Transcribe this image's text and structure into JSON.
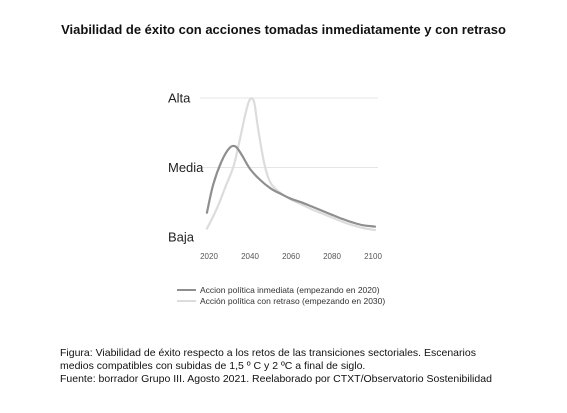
{
  "chart_data": {
    "type": "line",
    "title": "Viabilidad de éxito con acciones tomadas inmediatamente y con retraso",
    "xlabel": "",
    "ylabel": "",
    "x_ticks": [
      "2020",
      "2040",
      "2060",
      "2080",
      "2100"
    ],
    "xlim": [
      2020,
      2100
    ],
    "y_categories": [
      "Baja",
      "Media",
      "Alta"
    ],
    "y_levels": [
      0,
      1,
      2
    ],
    "ylim": [
      0,
      2
    ],
    "grid": "horizontal",
    "legend_position": "bottom",
    "series": [
      {
        "name": "Accion política inmediata (empezando en 2020)",
        "color": "#8f8f8f",
        "x": [
          2019,
          2022,
          2026,
          2030,
          2033,
          2036,
          2040,
          2045,
          2050,
          2055,
          2060,
          2065,
          2070,
          2075,
          2080,
          2085,
          2090,
          2095,
          2101
        ],
        "y": [
          0.35,
          0.75,
          1.08,
          1.28,
          1.3,
          1.18,
          0.98,
          0.82,
          0.7,
          0.62,
          0.55,
          0.5,
          0.44,
          0.38,
          0.32,
          0.26,
          0.21,
          0.17,
          0.15
        ]
      },
      {
        "name": "Acción política con retraso (empezando en 2030)",
        "color": "#dcdcdc",
        "x": [
          2019,
          2024,
          2028,
          2032,
          2035,
          2038,
          2040,
          2042,
          2044,
          2047,
          2050,
          2055,
          2060,
          2065,
          2070,
          2075,
          2080,
          2085,
          2090,
          2095,
          2101
        ],
        "y": [
          0.12,
          0.42,
          0.72,
          1.02,
          1.4,
          1.8,
          1.98,
          1.94,
          1.55,
          1.05,
          0.78,
          0.63,
          0.54,
          0.47,
          0.4,
          0.34,
          0.28,
          0.22,
          0.17,
          0.13,
          0.1
        ]
      }
    ]
  },
  "caption": {
    "line1": "Figura: Viabilidad de éxito respecto a los retos de las transiciones sectoriales. Escenarios",
    "line2": "medios compatibles con subidas de 1,5 º C y 2 ºC a final de siglo.",
    "line3": "Fuente: borrador Grupo III. Agosto 2021. Reelaborado por CTXT/Observatorio Sostenibilidad"
  }
}
